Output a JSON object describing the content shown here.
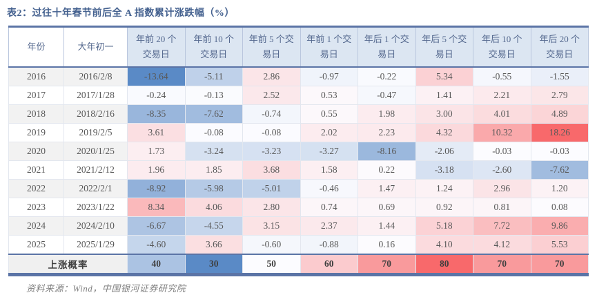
{
  "title": "表2：过往十年春节前后全 A 指数累计涨跌幅（%）",
  "source": "资料来源：Wind，中国银河证券研究院",
  "table": {
    "headers": [
      "年份",
      "大年初一",
      "年前 20 个 交易日",
      "年前 10 个 交易日",
      "年前 5 个交 易日",
      "年前 1 个交 易日",
      "年后 1 个交 易日",
      "年后 5 个交 易日",
      "年后 10 个 交易日",
      "年后 20 个 交易日"
    ],
    "rows": [
      {
        "year": "2016",
        "date": "2016/2/8",
        "values": [
          "-13.64",
          "-5.11",
          "2.86",
          "-0.97",
          "-0.22",
          "5.34",
          "-0.55",
          "-1.55"
        ]
      },
      {
        "year": "2017",
        "date": "2017/1/28",
        "values": [
          "-0.24",
          "-0.13",
          "2.52",
          "0.53",
          "-0.47",
          "1.41",
          "2.21",
          "2.79"
        ]
      },
      {
        "year": "2018",
        "date": "2018/2/16",
        "values": [
          "-8.35",
          "-7.62",
          "-0.74",
          "0.55",
          "1.98",
          "3.00",
          "4.01",
          "4.89"
        ]
      },
      {
        "year": "2019",
        "date": "2019/2/5",
        "values": [
          "3.61",
          "-0.08",
          "-0.08",
          "2.02",
          "2.23",
          "4.32",
          "10.32",
          "18.26"
        ]
      },
      {
        "year": "2020",
        "date": "2020/1/25",
        "values": [
          "1.73",
          "-3.24",
          "-3.23",
          "-3.27",
          "-8.16",
          "-2.06",
          "-0.03",
          "-0.03"
        ]
      },
      {
        "year": "2021",
        "date": "2021/2/12",
        "values": [
          "1.96",
          "1.85",
          "3.68",
          "1.58",
          "0.22",
          "-3.18",
          "-2.60",
          "-7.62"
        ]
      },
      {
        "year": "2022",
        "date": "2022/2/1",
        "values": [
          "-8.92",
          "-5.98",
          "-5.01",
          "-0.46",
          "1.47",
          "1.24",
          "2.96",
          "1.20"
        ]
      },
      {
        "year": "2023",
        "date": "2023/1/22",
        "values": [
          "8.34",
          "4.06",
          "2.80",
          "0.74",
          "0.69",
          "0.92",
          "0.81",
          "0.08"
        ]
      },
      {
        "year": "2024",
        "date": "2024/2/10",
        "values": [
          "-6.67",
          "-4.55",
          "3.15",
          "2.37",
          "1.44",
          "5.18",
          "7.72",
          "9.86"
        ]
      },
      {
        "year": "2025",
        "date": "2025/1/29",
        "values": [
          "-4.60",
          "3.66",
          "-0.60",
          "-0.88",
          "0.16",
          "4.10",
          "4.12",
          "5.53"
        ]
      }
    ],
    "summary": {
      "label": "上涨概率",
      "values": [
        "40",
        "30",
        "50",
        "60",
        "70",
        "80",
        "70",
        "70"
      ]
    }
  },
  "colors": {
    "heat_min": "#5A8AC6",
    "heat_mid": "#FCFCFF",
    "heat_max": "#F8696B",
    "accent_border": "#5B74A6",
    "header_bg": "#DCE6F2",
    "header_text": "#54688E",
    "title_text": "#44618F"
  },
  "scales": {
    "values": {
      "min": -13.64,
      "mid": 0,
      "max": 18.26
    },
    "summary": {
      "min": 30,
      "mid": 50,
      "max": 80
    }
  }
}
